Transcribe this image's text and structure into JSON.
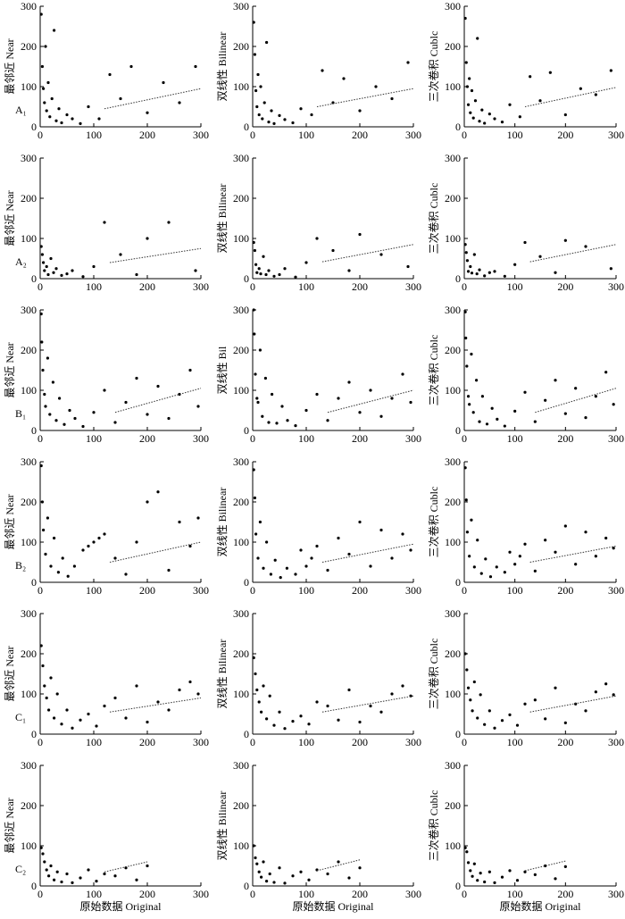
{
  "chart_data": [
    {
      "type": "scatter",
      "ylabel": "最邻近 Near",
      "panel_label": "A₁",
      "xlim": [
        0,
        300
      ],
      "ylim": [
        0,
        300
      ],
      "xticks": [
        0,
        100,
        200,
        300
      ],
      "yticks": [
        0,
        100,
        200,
        300
      ],
      "x": [
        2,
        4,
        6,
        8,
        10,
        12,
        15,
        18,
        22,
        26,
        30,
        35,
        40,
        50,
        60,
        75,
        90,
        110,
        130,
        150,
        170,
        200,
        230,
        260,
        290
      ],
      "values": [
        280,
        150,
        95,
        60,
        200,
        40,
        110,
        25,
        70,
        240,
        15,
        45,
        10,
        30,
        20,
        8,
        50,
        20,
        130,
        70,
        150,
        35,
        110,
        60,
        150
      ],
      "trend": {
        "x": [
          120,
          300
        ],
        "values": [
          45,
          95
        ]
      }
    },
    {
      "type": "scatter",
      "ylabel": "双线性 Bilinear",
      "xlim": [
        0,
        300
      ],
      "ylim": [
        0,
        300
      ],
      "xticks": [
        0,
        100,
        200,
        300
      ],
      "yticks": [
        0,
        100,
        200,
        300
      ],
      "x": [
        2,
        4,
        6,
        8,
        10,
        12,
        15,
        18,
        22,
        26,
        30,
        35,
        40,
        50,
        60,
        75,
        90,
        110,
        130,
        150,
        170,
        200,
        230,
        260,
        290
      ],
      "values": [
        260,
        180,
        90,
        50,
        130,
        30,
        100,
        20,
        60,
        210,
        12,
        40,
        8,
        28,
        18,
        10,
        45,
        30,
        140,
        60,
        120,
        40,
        100,
        70,
        160
      ],
      "trend": {
        "x": [
          120,
          300
        ],
        "values": [
          50,
          95
        ]
      }
    },
    {
      "type": "scatter",
      "ylabel": "三次卷积 Cublc",
      "xlim": [
        0,
        300
      ],
      "ylim": [
        0,
        300
      ],
      "xticks": [
        0,
        100,
        200,
        300
      ],
      "yticks": [
        0,
        100,
        200,
        300
      ],
      "x": [
        2,
        4,
        6,
        8,
        10,
        12,
        15,
        18,
        22,
        26,
        30,
        35,
        40,
        50,
        60,
        75,
        90,
        110,
        130,
        150,
        170,
        200,
        230,
        260,
        290
      ],
      "values": [
        270,
        160,
        100,
        55,
        120,
        35,
        90,
        22,
        65,
        220,
        14,
        42,
        9,
        32,
        20,
        12,
        55,
        25,
        125,
        65,
        135,
        30,
        95,
        80,
        140
      ],
      "trend": {
        "x": [
          120,
          300
        ],
        "values": [
          50,
          98
        ]
      }
    },
    {
      "type": "scatter",
      "ylabel": "最邻近 Near",
      "panel_label": "A₂",
      "xlim": [
        0,
        300
      ],
      "ylim": [
        0,
        300
      ],
      "xticks": [
        0,
        100,
        200,
        300
      ],
      "yticks": [
        0,
        100,
        200,
        300
      ],
      "x": [
        2,
        4,
        6,
        8,
        12,
        15,
        20,
        25,
        30,
        40,
        50,
        60,
        80,
        100,
        120,
        150,
        180,
        200,
        240,
        290
      ],
      "values": [
        80,
        60,
        40,
        20,
        30,
        10,
        50,
        15,
        25,
        8,
        12,
        20,
        5,
        30,
        140,
        60,
        10,
        100,
        140,
        20
      ],
      "trend": {
        "x": [
          130,
          300
        ],
        "values": [
          40,
          75
        ]
      }
    },
    {
      "type": "scatter",
      "ylabel": "双线性 Bilinear",
      "xlim": [
        0,
        300
      ],
      "ylim": [
        0,
        300
      ],
      "xticks": [
        0,
        100,
        200,
        300
      ],
      "yticks": [
        0,
        100,
        200,
        300
      ],
      "x": [
        2,
        4,
        6,
        8,
        12,
        15,
        20,
        25,
        30,
        40,
        50,
        60,
        80,
        100,
        120,
        150,
        180,
        200,
        240,
        290
      ],
      "values": [
        90,
        70,
        35,
        15,
        25,
        12,
        55,
        10,
        20,
        6,
        10,
        25,
        4,
        40,
        100,
        70,
        20,
        110,
        60,
        30
      ],
      "trend": {
        "x": [
          130,
          300
        ],
        "values": [
          42,
          85
        ]
      }
    },
    {
      "type": "scatter",
      "ylabel": "三次卷积 Cublc",
      "xlim": [
        0,
        300
      ],
      "ylim": [
        0,
        300
      ],
      "xticks": [
        0,
        100,
        200,
        300
      ],
      "yticks": [
        0,
        100,
        200,
        300
      ],
      "x": [
        2,
        4,
        6,
        8,
        12,
        15,
        20,
        25,
        30,
        40,
        50,
        60,
        80,
        100,
        120,
        150,
        180,
        200,
        240,
        290
      ],
      "values": [
        85,
        65,
        45,
        18,
        30,
        14,
        60,
        12,
        22,
        7,
        15,
        18,
        6,
        35,
        90,
        55,
        15,
        95,
        80,
        25
      ],
      "trend": {
        "x": [
          130,
          300
        ],
        "values": [
          42,
          85
        ]
      }
    },
    {
      "type": "scatter",
      "ylabel": "最邻近 Near",
      "panel_label": "B₁",
      "xlim": [
        0,
        300
      ],
      "ylim": [
        0,
        300
      ],
      "xticks": [
        0,
        100,
        200,
        300
      ],
      "yticks": [
        0,
        100,
        200,
        300
      ],
      "x": [
        2,
        3,
        5,
        8,
        10,
        14,
        18,
        24,
        30,
        36,
        45,
        55,
        65,
        80,
        100,
        120,
        140,
        160,
        180,
        200,
        220,
        240,
        260,
        280,
        295
      ],
      "values": [
        290,
        220,
        150,
        90,
        60,
        180,
        40,
        120,
        25,
        80,
        15,
        50,
        30,
        10,
        45,
        100,
        20,
        70,
        130,
        40,
        110,
        30,
        90,
        150,
        60
      ],
      "trend": {
        "x": [
          140,
          300
        ],
        "values": [
          45,
          105
        ]
      }
    },
    {
      "type": "scatter",
      "ylabel": "双线性 Bil",
      "xlim": [
        0,
        300
      ],
      "ylim": [
        0,
        300
      ],
      "xticks": [
        0,
        100,
        200,
        300
      ],
      "yticks": [
        0,
        100,
        200,
        300
      ],
      "x": [
        2,
        3,
        5,
        8,
        10,
        14,
        18,
        24,
        30,
        36,
        45,
        55,
        65,
        80,
        100,
        120,
        140,
        160,
        180,
        200,
        220,
        240,
        260,
        280,
        295
      ],
      "values": [
        300,
        240,
        140,
        80,
        70,
        200,
        35,
        130,
        20,
        90,
        18,
        60,
        25,
        12,
        50,
        90,
        25,
        80,
        120,
        45,
        100,
        35,
        80,
        140,
        70
      ],
      "trend": {
        "x": [
          140,
          300
        ],
        "values": [
          45,
          100
        ]
      }
    },
    {
      "type": "scatter",
      "ylabel": "三次卷积 Cublc",
      "xlim": [
        0,
        300
      ],
      "ylim": [
        0,
        300
      ],
      "xticks": [
        0,
        100,
        200,
        300
      ],
      "yticks": [
        0,
        100,
        200,
        300
      ],
      "x": [
        2,
        3,
        5,
        8,
        10,
        14,
        18,
        24,
        30,
        36,
        45,
        55,
        65,
        80,
        100,
        120,
        140,
        160,
        180,
        200,
        220,
        240,
        260,
        280,
        295
      ],
      "values": [
        295,
        230,
        160,
        85,
        65,
        190,
        45,
        125,
        22,
        85,
        16,
        55,
        28,
        11,
        48,
        95,
        22,
        75,
        125,
        42,
        105,
        32,
        85,
        145,
        65
      ],
      "trend": {
        "x": [
          140,
          300
        ],
        "values": [
          45,
          105
        ]
      }
    },
    {
      "type": "scatter",
      "ylabel": "最邻近 Near",
      "panel_label": "B₂",
      "xlim": [
        0,
        300
      ],
      "ylim": [
        0,
        300
      ],
      "xticks": [
        0,
        100,
        200,
        300
      ],
      "yticks": [
        0,
        100,
        200,
        300
      ],
      "x": [
        2,
        4,
        6,
        10,
        14,
        20,
        26,
        34,
        42,
        52,
        64,
        80,
        90,
        100,
        110,
        120,
        140,
        160,
        180,
        200,
        220,
        240,
        260,
        280,
        295
      ],
      "values": [
        290,
        200,
        130,
        70,
        160,
        40,
        110,
        25,
        60,
        15,
        40,
        80,
        90,
        100,
        110,
        120,
        60,
        20,
        100,
        200,
        225,
        30,
        150,
        90,
        160
      ],
      "trend": {
        "x": [
          130,
          300
        ],
        "values": [
          50,
          100
        ]
      }
    },
    {
      "type": "scatter",
      "ylabel": "双线性 Bilinear",
      "xlim": [
        0,
        300
      ],
      "ylim": [
        0,
        300
      ],
      "xticks": [
        0,
        100,
        200,
        300
      ],
      "yticks": [
        0,
        100,
        200,
        300
      ],
      "x": [
        2,
        4,
        6,
        10,
        14,
        20,
        26,
        34,
        42,
        52,
        64,
        80,
        90,
        100,
        110,
        120,
        140,
        160,
        180,
        200,
        220,
        240,
        260,
        280,
        295
      ],
      "values": [
        280,
        210,
        120,
        60,
        150,
        35,
        100,
        20,
        55,
        12,
        35,
        20,
        80,
        40,
        60,
        90,
        30,
        110,
        70,
        150,
        40,
        130,
        60,
        120,
        80
      ],
      "trend": {
        "x": [
          130,
          300
        ],
        "values": [
          50,
          95
        ]
      }
    },
    {
      "type": "scatter",
      "ylabel": "三次卷积 Cublc",
      "xlim": [
        0,
        300
      ],
      "ylim": [
        0,
        300
      ],
      "xticks": [
        0,
        100,
        200,
        300
      ],
      "yticks": [
        0,
        100,
        200,
        300
      ],
      "x": [
        2,
        4,
        6,
        10,
        14,
        20,
        26,
        34,
        42,
        52,
        64,
        80,
        90,
        100,
        110,
        120,
        140,
        160,
        180,
        200,
        220,
        240,
        260,
        280,
        295
      ],
      "values": [
        285,
        205,
        125,
        65,
        155,
        38,
        105,
        22,
        58,
        14,
        38,
        25,
        75,
        45,
        65,
        95,
        28,
        105,
        75,
        140,
        45,
        125,
        65,
        110,
        85
      ],
      "trend": {
        "x": [
          130,
          300
        ],
        "values": [
          50,
          90
        ]
      }
    },
    {
      "type": "scatter",
      "ylabel": "最邻近 Near",
      "panel_label": "C₁",
      "xlim": [
        0,
        300
      ],
      "ylim": [
        0,
        300
      ],
      "xticks": [
        0,
        100,
        200,
        300
      ],
      "yticks": [
        0,
        100,
        200,
        300
      ],
      "x": [
        2,
        5,
        8,
        12,
        16,
        20,
        26,
        32,
        40,
        50,
        60,
        75,
        90,
        105,
        120,
        140,
        160,
        180,
        200,
        220,
        240,
        260,
        280,
        295
      ],
      "values": [
        220,
        170,
        120,
        90,
        60,
        140,
        40,
        100,
        25,
        60,
        15,
        35,
        50,
        20,
        70,
        90,
        40,
        120,
        30,
        80,
        60,
        110,
        130,
        100
      ],
      "trend": {
        "x": [
          130,
          300
        ],
        "values": [
          55,
          90
        ]
      }
    },
    {
      "type": "scatter",
      "ylabel": "双线性 Bilinear",
      "xlim": [
        0,
        300
      ],
      "ylim": [
        0,
        300
      ],
      "xticks": [
        0,
        100,
        200,
        300
      ],
      "yticks": [
        0,
        100,
        200,
        300
      ],
      "x": [
        2,
        5,
        8,
        12,
        16,
        20,
        26,
        32,
        40,
        50,
        60,
        75,
        90,
        105,
        120,
        140,
        160,
        180,
        200,
        220,
        240,
        260,
        280,
        295
      ],
      "values": [
        190,
        150,
        110,
        80,
        55,
        120,
        38,
        95,
        22,
        55,
        14,
        32,
        45,
        25,
        80,
        70,
        35,
        110,
        30,
        70,
        55,
        100,
        120,
        95
      ],
      "trend": {
        "x": [
          130,
          300
        ],
        "values": [
          55,
          95
        ]
      }
    },
    {
      "type": "scatter",
      "ylabel": "三次卷积 Cublc",
      "xlim": [
        0,
        300
      ],
      "ylim": [
        0,
        300
      ],
      "xticks": [
        0,
        100,
        200,
        300
      ],
      "yticks": [
        0,
        100,
        200,
        300
      ],
      "x": [
        2,
        5,
        8,
        12,
        16,
        20,
        26,
        32,
        40,
        50,
        60,
        75,
        90,
        105,
        120,
        140,
        160,
        180,
        200,
        220,
        240,
        260,
        280,
        295
      ],
      "values": [
        200,
        160,
        115,
        85,
        58,
        130,
        40,
        98,
        24,
        58,
        15,
        34,
        48,
        22,
        75,
        85,
        38,
        115,
        28,
        75,
        58,
        105,
        125,
        98
      ],
      "trend": {
        "x": [
          130,
          300
        ],
        "values": [
          55,
          95
        ]
      }
    },
    {
      "type": "scatter",
      "ylabel": "最邻近 Near",
      "panel_label": "C₂",
      "xlabel": "原始数据 Original",
      "xlim": [
        0,
        300
      ],
      "ylim": [
        0,
        300
      ],
      "xticks": [
        0,
        100,
        200,
        300
      ],
      "yticks": [
        0,
        100,
        200,
        300
      ],
      "x": [
        2,
        5,
        8,
        12,
        16,
        20,
        26,
        32,
        40,
        50,
        60,
        75,
        90,
        105,
        120,
        140,
        160,
        180,
        200
      ],
      "values": [
        95,
        80,
        60,
        40,
        25,
        50,
        15,
        35,
        10,
        30,
        8,
        20,
        40,
        12,
        30,
        25,
        45,
        15,
        50
      ],
      "trend": {
        "x": [
          120,
          200
        ],
        "values": [
          35,
          60
        ]
      }
    },
    {
      "type": "scatter",
      "ylabel": "双线性 Bilinear",
      "xlabel": "原始数据 Original",
      "xlim": [
        0,
        300
      ],
      "ylim": [
        0,
        300
      ],
      "xticks": [
        0,
        100,
        200,
        300
      ],
      "yticks": [
        0,
        100,
        200,
        300
      ],
      "x": [
        2,
        5,
        8,
        12,
        16,
        20,
        26,
        32,
        40,
        50,
        60,
        75,
        90,
        105,
        120,
        140,
        160,
        180,
        200
      ],
      "values": [
        100,
        70,
        55,
        35,
        22,
        60,
        12,
        30,
        9,
        45,
        7,
        25,
        35,
        15,
        40,
        30,
        60,
        20,
        45
      ],
      "trend": {
        "x": [
          120,
          200
        ],
        "values": [
          38,
          65
        ]
      }
    },
    {
      "type": "scatter",
      "ylabel": "三次卷积 Cublc",
      "xlabel": "原始数据 Original",
      "xlim": [
        0,
        300
      ],
      "ylim": [
        0,
        300
      ],
      "xticks": [
        0,
        100,
        200,
        300
      ],
      "yticks": [
        0,
        100,
        200,
        300
      ],
      "x": [
        2,
        5,
        8,
        12,
        16,
        20,
        26,
        32,
        40,
        50,
        60,
        75,
        90,
        105,
        120,
        140,
        160,
        180,
        200
      ],
      "values": [
        95,
        85,
        58,
        38,
        24,
        55,
        14,
        32,
        10,
        35,
        8,
        22,
        38,
        14,
        35,
        28,
        50,
        18,
        48
      ],
      "trend": {
        "x": [
          120,
          200
        ],
        "values": [
          38,
          62
        ]
      }
    }
  ]
}
